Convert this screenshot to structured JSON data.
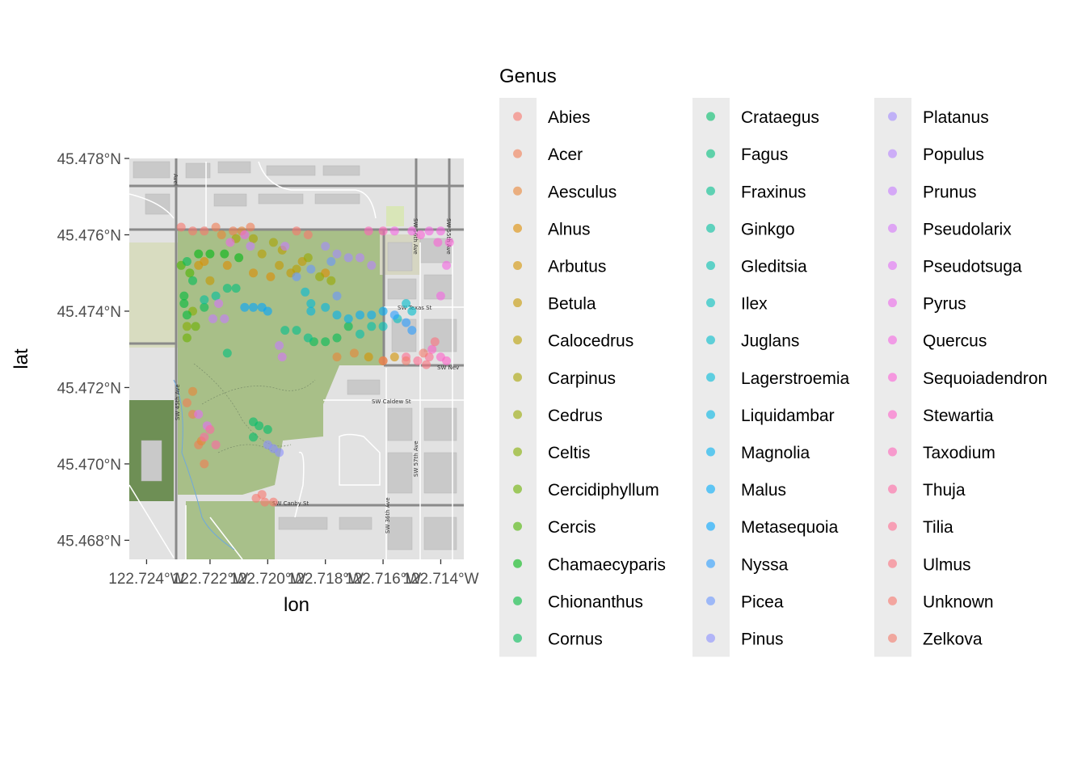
{
  "legend": {
    "title": "Genus",
    "entries": [
      {
        "name": "Abies",
        "color": "#F8766D"
      },
      {
        "name": "Acer",
        "color": "#F27D53"
      },
      {
        "name": "Aesculus",
        "color": "#E98537"
      },
      {
        "name": "Alnus",
        "color": "#DE8C00"
      },
      {
        "name": "Arbutus",
        "color": "#D39200"
      },
      {
        "name": "Betula",
        "color": "#C79800"
      },
      {
        "name": "Calocedrus",
        "color": "#B99E00"
      },
      {
        "name": "Carpinus",
        "color": "#A9A400"
      },
      {
        "name": "Cedrus",
        "color": "#97A900"
      },
      {
        "name": "Celtis",
        "color": "#83AD00"
      },
      {
        "name": "Cercidiphyllum",
        "color": "#6BB100"
      },
      {
        "name": "Cercis",
        "color": "#4BB400"
      },
      {
        "name": "Chamaecyparis",
        "color": "#00B813"
      },
      {
        "name": "Chionanthus",
        "color": "#00BA3C"
      },
      {
        "name": "Cornus",
        "color": "#00BC56"
      },
      {
        "name": "Crataegus",
        "color": "#00BE6B"
      },
      {
        "name": "Fagus",
        "color": "#00BF7D"
      },
      {
        "name": "Fraxinus",
        "color": "#00C08E"
      },
      {
        "name": "Ginkgo",
        "color": "#00C09F"
      },
      {
        "name": "Gleditsia",
        "color": "#00C0AF"
      },
      {
        "name": "Ilex",
        "color": "#00BFBE"
      },
      {
        "name": "Juglans",
        "color": "#00BDCC"
      },
      {
        "name": "Lagerstroemia",
        "color": "#00BAD9"
      },
      {
        "name": "Liquidambar",
        "color": "#00B6E5"
      },
      {
        "name": "Magnolia",
        "color": "#00B1F0"
      },
      {
        "name": "Malus",
        "color": "#00ABFA"
      },
      {
        "name": "Metasequoia",
        "color": "#00A5FF"
      },
      {
        "name": "Nyssa",
        "color": "#2A9DFF"
      },
      {
        "name": "Picea",
        "color": "#6996FF"
      },
      {
        "name": "Pinus",
        "color": "#8B90FF"
      },
      {
        "name": "Platanus",
        "color": "#A38AFF"
      },
      {
        "name": "Populus",
        "color": "#B784FF"
      },
      {
        "name": "Prunus",
        "color": "#C77CFF"
      },
      {
        "name": "Pseudolarix",
        "color": "#D674FA"
      },
      {
        "name": "Pseudotsuga",
        "color": "#E36EF6"
      },
      {
        "name": "Pyrus",
        "color": "#ED68EB"
      },
      {
        "name": "Quercus",
        "color": "#F566E3"
      },
      {
        "name": "Sequoiadendron",
        "color": "#FB61D7"
      },
      {
        "name": "Stewartia",
        "color": "#FF61C9"
      },
      {
        "name": "Taxodium",
        "color": "#FF64B9"
      },
      {
        "name": "Thuja",
        "color": "#FF67A4"
      },
      {
        "name": "Tilia",
        "color": "#FF6C91"
      },
      {
        "name": "Ulmus",
        "color": "#FC717F"
      },
      {
        "name": "Unknown",
        "color": "#F8766D"
      },
      {
        "name": "Zelkova",
        "color": "#F4796A"
      }
    ]
  },
  "map_labels": {
    "sw_45th_ave": "SW 45th Ave",
    "sw_texas_st": "SW Texas St",
    "sw_caldew_st": "SW Caldew St",
    "sw_canby_st": "SW Canby St",
    "sw_nev": "SW Nev",
    "sw_56th_ave": "SW 56th Ave",
    "sw_55th_ave": "SW 55th Ave",
    "sw_57th_ave": "SW 57th Ave",
    "sw_36th_ave": "SW 36th Ave",
    "sw_avel": "Avel"
  },
  "chart_data": {
    "type": "scatter",
    "title": "",
    "xlabel": "lon",
    "ylabel": "lat",
    "xlim": [
      -122.7248,
      -122.7132
    ],
    "ylim": [
      45.4675,
      45.478
    ],
    "x_ticks": [
      -122.7242,
      -122.722,
      -122.72,
      -122.718,
      -122.716,
      -122.714
    ],
    "x_tick_labels": [
      "122.724°W",
      "122.722°W",
      "122.720°W",
      "122.718°W",
      "122.716°W",
      "122.714°W"
    ],
    "y_ticks": [
      45.468,
      45.47,
      45.472,
      45.474,
      45.476,
      45.478
    ],
    "y_tick_labels": [
      "45.468°N",
      "45.470°N",
      "45.472°N",
      "45.474°N",
      "45.476°N",
      "45.478°N"
    ],
    "grid": false,
    "legend_position": "right",
    "point_alpha": 0.6,
    "series": [
      {
        "name": "Abies",
        "points": [
          [
            -122.7204,
            45.4691
          ],
          [
            -122.7201,
            45.469
          ],
          [
            -122.7198,
            45.469
          ],
          [
            -122.7202,
            45.4692
          ]
        ]
      },
      {
        "name": "Acer",
        "points": [
          [
            -122.7218,
            45.4762
          ],
          [
            -122.7212,
            45.4761
          ],
          [
            -122.7206,
            45.4762
          ],
          [
            -122.7228,
            45.4716
          ],
          [
            -122.7226,
            45.4713
          ],
          [
            -122.7224,
            45.4705
          ],
          [
            -122.7222,
            45.47
          ]
        ]
      },
      {
        "name": "Aesculus",
        "points": [
          [
            -122.7216,
            45.476
          ],
          [
            -122.7209,
            45.4761
          ],
          [
            -122.7226,
            45.4719
          ],
          [
            -122.7223,
            45.4706
          ],
          [
            -122.7176,
            45.4728
          ],
          [
            -122.717,
            45.4729
          ]
        ]
      },
      {
        "name": "Alnus",
        "points": [
          [
            -122.7222,
            45.4753
          ],
          [
            -122.7214,
            45.4752
          ],
          [
            -122.7205,
            45.475
          ],
          [
            -122.7199,
            45.4749
          ],
          [
            -122.718,
            45.475
          ]
        ]
      },
      {
        "name": "Arbutus",
        "points": [
          [
            -122.7165,
            45.4728
          ],
          [
            -122.716,
            45.4727
          ],
          [
            -122.7156,
            45.4728
          ],
          [
            -122.7224,
            45.4752
          ]
        ]
      },
      {
        "name": "Betula",
        "points": [
          [
            -122.7188,
            45.4753
          ],
          [
            -122.7192,
            45.475
          ],
          [
            -122.7196,
            45.4752
          ],
          [
            -122.722,
            45.4748
          ]
        ]
      },
      {
        "name": "Calocedrus",
        "points": [
          [
            -122.7202,
            45.4755
          ],
          [
            -122.7195,
            45.4756
          ],
          [
            -122.719,
            45.4751
          ]
        ]
      },
      {
        "name": "Carpinus",
        "points": [
          [
            -122.7211,
            45.4759
          ],
          [
            -122.7205,
            45.4759
          ],
          [
            -122.7198,
            45.4758
          ]
        ]
      },
      {
        "name": "Cedrus",
        "points": [
          [
            -122.7186,
            45.4754
          ],
          [
            -122.7182,
            45.4749
          ],
          [
            -122.7178,
            45.4748
          ]
        ]
      },
      {
        "name": "Celtis",
        "points": [
          [
            -122.7226,
            45.474
          ],
          [
            -122.7228,
            45.4736
          ]
        ]
      },
      {
        "name": "Cercidiphyllum",
        "points": [
          [
            -122.7228,
            45.4733
          ],
          [
            -122.7225,
            45.4736
          ]
        ]
      },
      {
        "name": "Cercis",
        "points": [
          [
            -122.723,
            45.4752
          ],
          [
            -122.7227,
            45.475
          ]
        ]
      },
      {
        "name": "Chamaecyparis",
        "points": [
          [
            -122.7224,
            45.4755
          ],
          [
            -122.722,
            45.4755
          ],
          [
            -122.7215,
            45.4755
          ],
          [
            -122.721,
            45.4754
          ]
        ]
      },
      {
        "name": "Chionanthus",
        "points": [
          [
            -122.7229,
            45.4744
          ],
          [
            -122.7229,
            45.4742
          ],
          [
            -122.7228,
            45.4739
          ]
        ]
      },
      {
        "name": "Cornus",
        "points": [
          [
            -122.7226,
            45.4748
          ],
          [
            -122.7228,
            45.4753
          ],
          [
            -122.7222,
            45.4741
          ],
          [
            -122.7184,
            45.4732
          ],
          [
            -122.718,
            45.4732
          ],
          [
            -122.7176,
            45.4733
          ],
          [
            -122.7172,
            45.4736
          ]
        ]
      },
      {
        "name": "Crataegus",
        "points": [
          [
            -122.7205,
            45.4711
          ],
          [
            -122.7203,
            45.471
          ],
          [
            -122.72,
            45.4709
          ],
          [
            -122.7205,
            45.4707
          ]
        ]
      },
      {
        "name": "Fagus",
        "points": [
          [
            -122.7214,
            45.4729
          ],
          [
            -122.7211,
            45.4746
          ],
          [
            -122.7214,
            45.4746
          ]
        ]
      },
      {
        "name": "Fraxinus",
        "points": [
          [
            -122.7186,
            45.4733
          ],
          [
            -122.719,
            45.4735
          ],
          [
            -122.7194,
            45.4735
          ]
        ]
      },
      {
        "name": "Ginkgo",
        "points": [
          [
            -122.7222,
            45.4743
          ],
          [
            -122.7218,
            45.4744
          ]
        ]
      },
      {
        "name": "Gleditsia",
        "points": [
          [
            -122.7168,
            45.4734
          ],
          [
            -122.7164,
            45.4736
          ]
        ]
      },
      {
        "name": "Ilex",
        "points": [
          [
            -122.716,
            45.4736
          ],
          [
            -122.7155,
            45.4738
          ]
        ]
      },
      {
        "name": "Juglans",
        "points": [
          [
            -122.715,
            45.474
          ],
          [
            -122.7152,
            45.4742
          ]
        ]
      },
      {
        "name": "Lagerstroemia",
        "points": [
          [
            -122.7187,
            45.4745
          ],
          [
            -122.7185,
            45.4742
          ]
        ]
      },
      {
        "name": "Liquidambar",
        "points": [
          [
            -122.7185,
            45.474
          ],
          [
            -122.718,
            45.4741
          ]
        ]
      },
      {
        "name": "Magnolia",
        "points": [
          [
            -122.7176,
            45.4739
          ],
          [
            -122.7172,
            45.4738
          ]
        ]
      },
      {
        "name": "Malus",
        "points": [
          [
            -122.7168,
            45.4739
          ],
          [
            -122.7164,
            45.4739
          ],
          [
            -122.716,
            45.474
          ]
        ]
      },
      {
        "name": "Metasequoia",
        "points": [
          [
            -122.7208,
            45.4741
          ],
          [
            -122.7205,
            45.4741
          ],
          [
            -122.7202,
            45.4741
          ],
          [
            -122.72,
            45.474
          ]
        ]
      },
      {
        "name": "Nyssa",
        "points": [
          [
            -122.7156,
            45.4739
          ],
          [
            -122.7152,
            45.4737
          ],
          [
            -122.715,
            45.4735
          ]
        ]
      },
      {
        "name": "Picea",
        "points": [
          [
            -122.719,
            45.4749
          ],
          [
            -122.7185,
            45.4751
          ],
          [
            -122.7178,
            45.4753
          ],
          [
            -122.7176,
            45.4744
          ]
        ]
      },
      {
        "name": "Pinus",
        "points": [
          [
            -122.72,
            45.4705
          ],
          [
            -122.7198,
            45.4704
          ],
          [
            -122.7196,
            45.4703
          ]
        ]
      },
      {
        "name": "Platanus",
        "points": [
          [
            -122.718,
            45.4757
          ],
          [
            -122.7176,
            45.4755
          ],
          [
            -122.7172,
            45.4754
          ]
        ]
      },
      {
        "name": "Populus",
        "points": [
          [
            -122.7168,
            45.4754
          ],
          [
            -122.7164,
            45.4752
          ]
        ]
      },
      {
        "name": "Prunus",
        "points": [
          [
            -122.7196,
            45.4731
          ],
          [
            -122.7219,
            45.4738
          ],
          [
            -122.7215,
            45.4738
          ],
          [
            -122.7194,
            45.4757
          ],
          [
            -122.7206,
            45.4757
          ]
        ]
      },
      {
        "name": "Pseudolarix",
        "points": [
          [
            -122.7195,
            45.4728
          ],
          [
            -122.7217,
            45.4742
          ]
        ]
      },
      {
        "name": "Pseudotsuga",
        "points": [
          [
            -122.7224,
            45.4713
          ],
          [
            -122.7221,
            45.471
          ]
        ]
      },
      {
        "name": "Pyrus",
        "points": [
          [
            -122.7213,
            45.4758
          ],
          [
            -122.7208,
            45.476
          ]
        ]
      },
      {
        "name": "Quercus",
        "points": [
          [
            -122.7156,
            45.4761
          ],
          [
            -122.715,
            45.4761
          ],
          [
            -122.7144,
            45.4761
          ],
          [
            -122.714,
            45.4761
          ],
          [
            -122.7138,
            45.4752
          ],
          [
            -122.714,
            45.4744
          ]
        ]
      },
      {
        "name": "Sequoiadendron",
        "points": [
          [
            -122.7137,
            45.4758
          ],
          [
            -122.7141,
            45.4758
          ],
          [
            -122.7147,
            45.476
          ]
        ]
      },
      {
        "name": "Stewartia",
        "points": [
          [
            -122.7143,
            45.473
          ],
          [
            -122.714,
            45.4728
          ],
          [
            -122.7138,
            45.4727
          ]
        ]
      },
      {
        "name": "Taxodium",
        "points": [
          [
            -122.7165,
            45.4761
          ],
          [
            -122.716,
            45.4761
          ]
        ]
      },
      {
        "name": "Thuja",
        "points": [
          [
            -122.7222,
            45.4707
          ],
          [
            -122.722,
            45.4709
          ],
          [
            -122.7218,
            45.4705
          ]
        ]
      },
      {
        "name": "Tilia",
        "points": [
          [
            -122.7152,
            45.4728
          ],
          [
            -122.7148,
            45.4727
          ],
          [
            -122.7144,
            45.4728
          ]
        ]
      },
      {
        "name": "Ulmus",
        "points": [
          [
            -122.7142,
            45.4732
          ],
          [
            -122.7145,
            45.4726
          ]
        ]
      },
      {
        "name": "Unknown",
        "points": [
          [
            -122.723,
            45.4762
          ],
          [
            -122.7226,
            45.4761
          ],
          [
            -122.7222,
            45.4761
          ],
          [
            -122.719,
            45.4761
          ],
          [
            -122.7186,
            45.476
          ]
        ]
      },
      {
        "name": "Zelkova",
        "points": [
          [
            -122.7146,
            45.4729
          ],
          [
            -122.7152,
            45.4727
          ],
          [
            -122.716,
            45.4727
          ]
        ]
      }
    ]
  }
}
